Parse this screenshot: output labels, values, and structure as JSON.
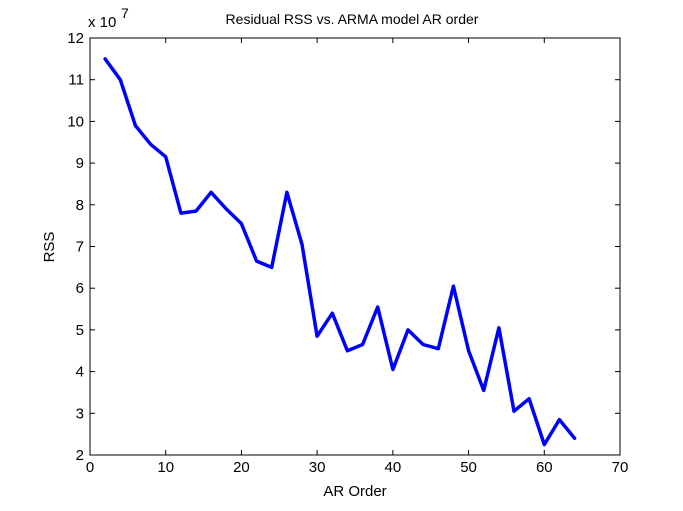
{
  "chart_data": {
    "type": "line",
    "title": "Residual RSS vs. ARMA model AR order",
    "xlabel": "AR Order",
    "ylabel": "RSS",
    "y_multiplier_base": "x 10",
    "y_multiplier_exp": "7",
    "xlim": [
      0,
      70
    ],
    "ylim": [
      2,
      12
    ],
    "xticks": [
      0,
      10,
      20,
      30,
      40,
      50,
      60,
      70
    ],
    "yticks": [
      2,
      3,
      4,
      5,
      6,
      7,
      8,
      9,
      10,
      11,
      12
    ],
    "grid": false,
    "line_color": "#0000ff",
    "series": [
      {
        "x": [
          2,
          4,
          6,
          8,
          10,
          12,
          14,
          16,
          18,
          20,
          22,
          24,
          26,
          28,
          30,
          32,
          34,
          36,
          38,
          40,
          42,
          44,
          46,
          48,
          50,
          52,
          54,
          56,
          58,
          60,
          62,
          64
        ],
        "values": [
          11.5,
          11.0,
          9.9,
          9.45,
          9.15,
          7.8,
          7.85,
          8.3,
          7.9,
          7.55,
          6.65,
          6.5,
          8.3,
          7.05,
          4.85,
          5.4,
          4.5,
          4.65,
          5.55,
          4.05,
          5.0,
          4.65,
          4.55,
          6.05,
          4.5,
          3.55,
          5.05,
          3.05,
          3.35,
          2.25,
          2.85,
          2.4
        ]
      }
    ]
  }
}
